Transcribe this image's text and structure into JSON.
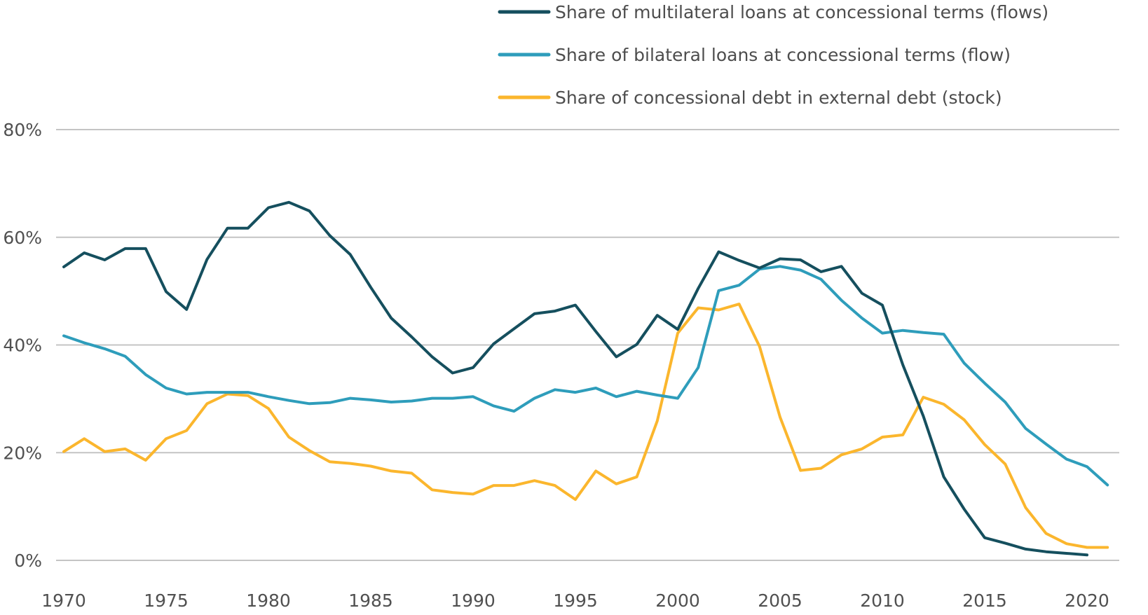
{
  "chart_data": {
    "type": "line",
    "title": "",
    "xlabel": "",
    "ylabel": "",
    "ylim": [
      0,
      80
    ],
    "y_ticks": [
      0,
      20,
      40,
      60,
      80
    ],
    "y_tick_labels": [
      "0%",
      "20%",
      "40%",
      "60%",
      "80%"
    ],
    "x_ticks": [
      1970,
      1975,
      1980,
      1985,
      1990,
      1995,
      2000,
      2005,
      2010,
      2015,
      2020
    ],
    "x_tick_labels": [
      "1970",
      "1975",
      "1980",
      "1985",
      "1990",
      "1995",
      "2000",
      "2005",
      "2010",
      "2015",
      "2020"
    ],
    "xlim": [
      1970,
      2021
    ],
    "grid": "horizontal",
    "legend_position": "top-right",
    "series": [
      {
        "name": "Share of multilateral loans at concessional terms (flows)",
        "color": "#154f5e",
        "x": [
          1970,
          1971,
          1972,
          1973,
          1974,
          1975,
          1976,
          1977,
          1978,
          1979,
          1980,
          1981,
          1982,
          1983,
          1984,
          1985,
          1986,
          1987,
          1988,
          1989,
          1990,
          1991,
          1992,
          1993,
          1994,
          1995,
          1996,
          1997,
          1998,
          1999,
          2000,
          2001,
          2002,
          2003,
          2004,
          2005,
          2006,
          2007,
          2008,
          2009,
          2010,
          2011,
          2012,
          2013,
          2014,
          2015,
          2016,
          2017,
          2018,
          2019,
          2020
        ],
        "values": [
          54.5,
          57.1,
          55.8,
          57.9,
          57.9,
          49.9,
          46.6,
          55.9,
          61.7,
          61.7,
          65.5,
          66.5,
          64.9,
          60.3,
          56.8,
          50.7,
          45.0,
          41.5,
          37.8,
          34.8,
          35.8,
          40.2,
          43.0,
          45.8,
          46.3,
          47.4,
          42.5,
          37.8,
          40.1,
          45.5,
          42.9,
          50.5,
          57.3,
          55.7,
          54.3,
          56.0,
          55.8,
          53.6,
          54.6,
          49.6,
          47.4,
          36.3,
          26.8,
          15.5,
          9.5,
          4.2,
          3.2,
          2.1,
          1.6,
          1.3,
          1.0
        ]
      },
      {
        "name": "Share of bilateral loans at concessional terms (flow)",
        "color": "#2e9dbb",
        "x": [
          1970,
          1971,
          1972,
          1973,
          1974,
          1975,
          1976,
          1977,
          1978,
          1979,
          1980,
          1981,
          1982,
          1983,
          1984,
          1985,
          1986,
          1987,
          1988,
          1989,
          1990,
          1991,
          1992,
          1993,
          1994,
          1995,
          1996,
          1997,
          1998,
          1999,
          2000,
          2001,
          2002,
          2003,
          2004,
          2005,
          2006,
          2007,
          2008,
          2009,
          2010,
          2011,
          2012,
          2013,
          2014,
          2015,
          2016,
          2017,
          2018,
          2019,
          2020,
          2021
        ],
        "values": [
          41.7,
          40.4,
          39.3,
          37.9,
          34.5,
          32.0,
          30.9,
          31.2,
          31.2,
          31.2,
          30.4,
          29.7,
          29.1,
          29.3,
          30.1,
          29.8,
          29.4,
          29.6,
          30.1,
          30.1,
          30.4,
          28.7,
          27.7,
          30.1,
          31.7,
          31.2,
          32.0,
          30.4,
          31.4,
          30.7,
          30.1,
          35.8,
          50.1,
          51.1,
          54.1,
          54.6,
          53.9,
          52.2,
          48.3,
          45.0,
          42.2,
          42.7,
          42.3,
          42.0,
          36.6,
          32.9,
          29.4,
          24.5,
          21.6,
          18.8,
          17.4,
          14.0
        ]
      },
      {
        "name": "Share of concessional debt in external debt (stock)",
        "color": "#fbb62d",
        "x": [
          1970,
          1971,
          1972,
          1973,
          1974,
          1975,
          1976,
          1977,
          1978,
          1979,
          1980,
          1981,
          1982,
          1983,
          1984,
          1985,
          1986,
          1987,
          1988,
          1989,
          1990,
          1991,
          1992,
          1993,
          1994,
          1995,
          1996,
          1997,
          1998,
          1999,
          2000,
          2001,
          2002,
          2003,
          2004,
          2005,
          2006,
          2007,
          2008,
          2009,
          2010,
          2011,
          2012,
          2013,
          2014,
          2015,
          2016,
          2017,
          2018,
          2019,
          2020,
          2021
        ],
        "values": [
          20.2,
          22.6,
          20.2,
          20.7,
          18.6,
          22.6,
          24.1,
          29.1,
          30.9,
          30.6,
          28.2,
          22.9,
          20.4,
          18.3,
          18.0,
          17.5,
          16.6,
          16.2,
          13.1,
          12.6,
          12.3,
          13.9,
          13.9,
          14.8,
          13.9,
          11.3,
          16.6,
          14.2,
          15.5,
          25.9,
          42.2,
          46.9,
          46.5,
          47.6,
          39.7,
          26.6,
          16.7,
          17.1,
          19.6,
          20.7,
          22.9,
          23.3,
          30.3,
          29.0,
          26.1,
          21.5,
          17.9,
          9.8,
          5.0,
          3.1,
          2.4,
          2.4
        ]
      }
    ]
  }
}
